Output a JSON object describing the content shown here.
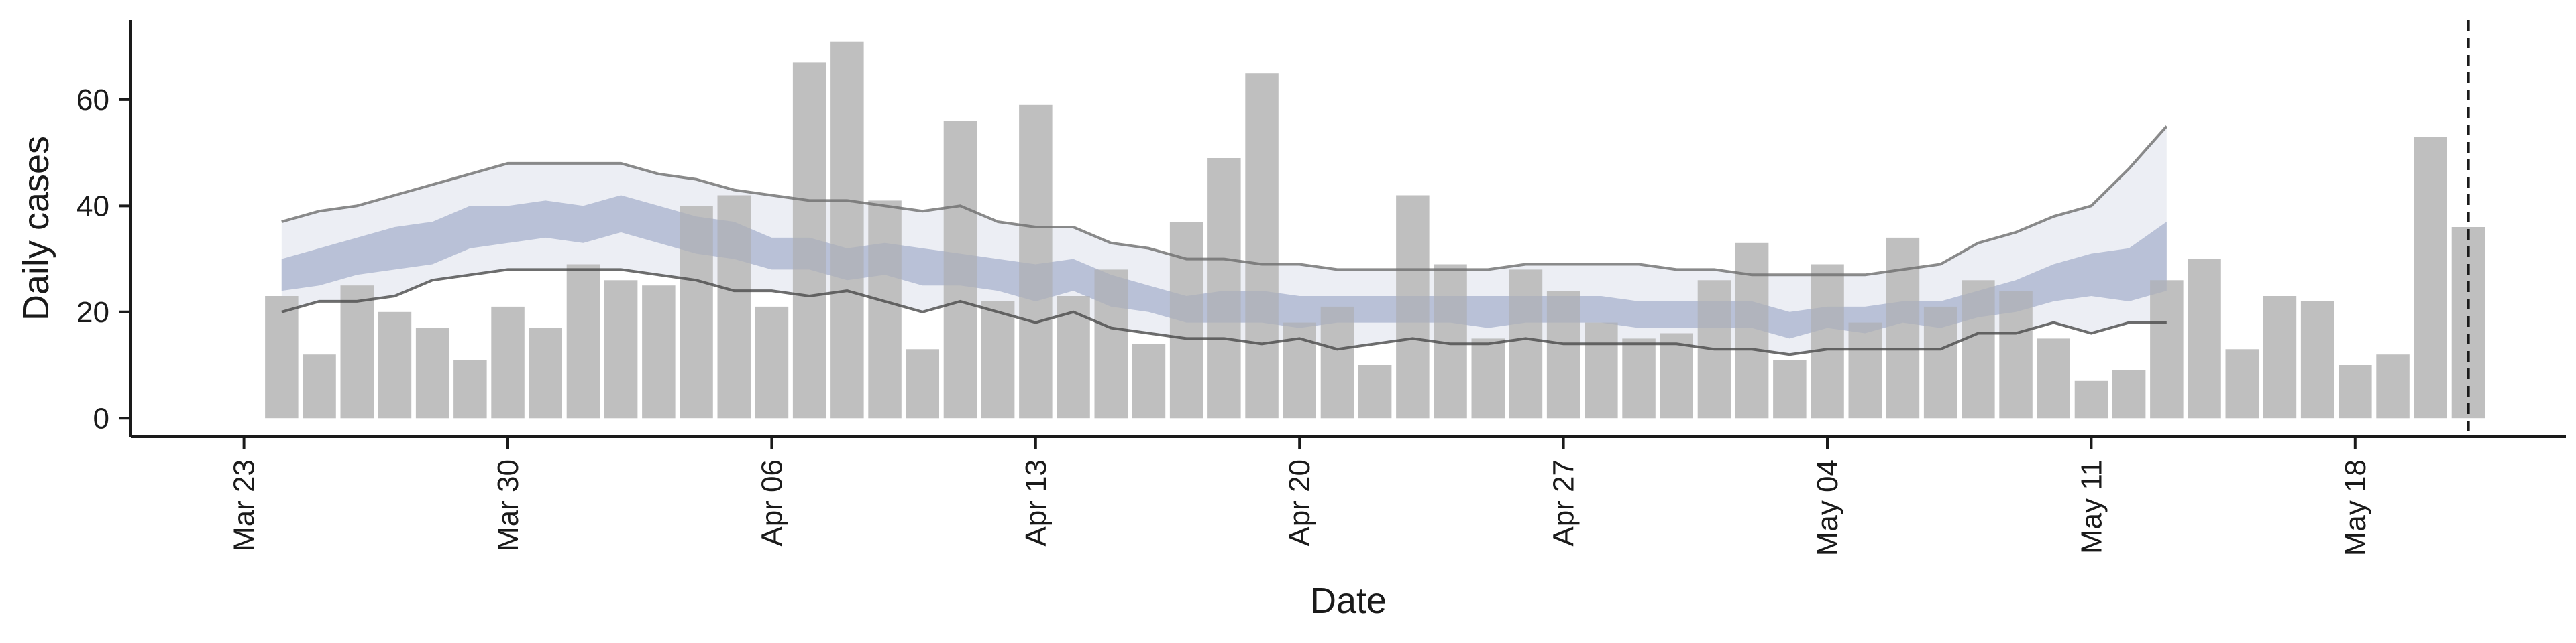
{
  "chart_data": {
    "type": "bar",
    "xlabel": "Date",
    "ylabel": "Daily cases",
    "x_tick_labels": [
      {
        "label": "Mar 23",
        "date": "2020-03-23"
      },
      {
        "label": "Mar 30",
        "date": "2020-03-30"
      },
      {
        "label": "Apr 06",
        "date": "2020-04-06"
      },
      {
        "label": "Apr 13",
        "date": "2020-04-13"
      },
      {
        "label": "Apr 20",
        "date": "2020-04-20"
      },
      {
        "label": "Apr 27",
        "date": "2020-04-27"
      },
      {
        "label": "May 04",
        "date": "2020-05-04"
      },
      {
        "label": "May 11",
        "date": "2020-05-11"
      },
      {
        "label": "May 18",
        "date": "2020-05-18"
      }
    ],
    "y_ticks": [
      0,
      20,
      40,
      60
    ],
    "ylim": [
      -3.5,
      75
    ],
    "xlim": [
      "2020-03-20",
      "2020-05-24"
    ],
    "grid": false,
    "dashed_vline_date": "2020-05-21",
    "colors": {
      "bar": "#bdbdbd",
      "band_outer": "#eceef4",
      "band_inner": "#c8cfe0",
      "band_line_upper": "#6e6e6e",
      "band_line_lower": "#4a4a4a",
      "axis": "#1a1a1a"
    },
    "bars": {
      "start_date": "2020-03-24",
      "values": [
        23,
        12,
        25,
        20,
        17,
        11,
        21,
        17,
        29,
        26,
        25,
        40,
        42,
        21,
        67,
        71,
        41,
        13,
        56,
        22,
        59,
        23,
        28,
        14,
        37,
        49,
        65,
        18,
        21,
        10,
        42,
        29,
        15,
        28,
        24,
        18,
        15,
        16,
        26,
        33,
        11,
        29,
        18,
        34,
        21,
        26,
        24,
        15,
        7,
        9,
        26,
        30,
        13,
        23,
        22,
        10,
        12,
        53,
        36
      ]
    },
    "bands": {
      "start_date": "2020-03-24",
      "outer_upper": [
        37,
        39,
        40,
        42,
        44,
        46,
        48,
        48,
        48,
        48,
        46,
        45,
        43,
        42,
        41,
        41,
        40,
        39,
        40,
        37,
        36,
        36,
        33,
        32,
        30,
        30,
        29,
        29,
        28,
        28,
        28,
        28,
        28,
        29,
        29,
        29,
        29,
        28,
        28,
        27,
        27,
        27,
        27,
        28,
        29,
        33,
        35,
        38,
        40,
        47,
        55
      ],
      "outer_lower": [
        20,
        22,
        22,
        23,
        26,
        27,
        28,
        28,
        28,
        28,
        27,
        26,
        24,
        24,
        23,
        24,
        22,
        20,
        22,
        20,
        18,
        20,
        17,
        16,
        15,
        15,
        14,
        15,
        13,
        14,
        15,
        14,
        14,
        15,
        14,
        14,
        14,
        14,
        13,
        13,
        12,
        13,
        13,
        13,
        13,
        16,
        16,
        18,
        16,
        18,
        18
      ],
      "inner_upper": [
        30,
        32,
        34,
        36,
        37,
        40,
        40,
        41,
        40,
        42,
        40,
        38,
        37,
        34,
        34,
        32,
        33,
        32,
        31,
        30,
        29,
        30,
        27,
        25,
        23,
        24,
        24,
        23,
        23,
        23,
        23,
        23,
        23,
        23,
        23,
        23,
        22,
        22,
        22,
        22,
        20,
        21,
        21,
        22,
        22,
        24,
        26,
        29,
        31,
        32,
        37
      ],
      "inner_lower": [
        24,
        25,
        27,
        28,
        29,
        32,
        33,
        34,
        33,
        35,
        33,
        31,
        30,
        28,
        28,
        26,
        27,
        25,
        25,
        24,
        22,
        24,
        21,
        20,
        18,
        18,
        18,
        17,
        18,
        18,
        18,
        18,
        17,
        18,
        18,
        18,
        17,
        17,
        17,
        17,
        15,
        17,
        16,
        18,
        17,
        19,
        20,
        22,
        23,
        22,
        24
      ]
    }
  }
}
